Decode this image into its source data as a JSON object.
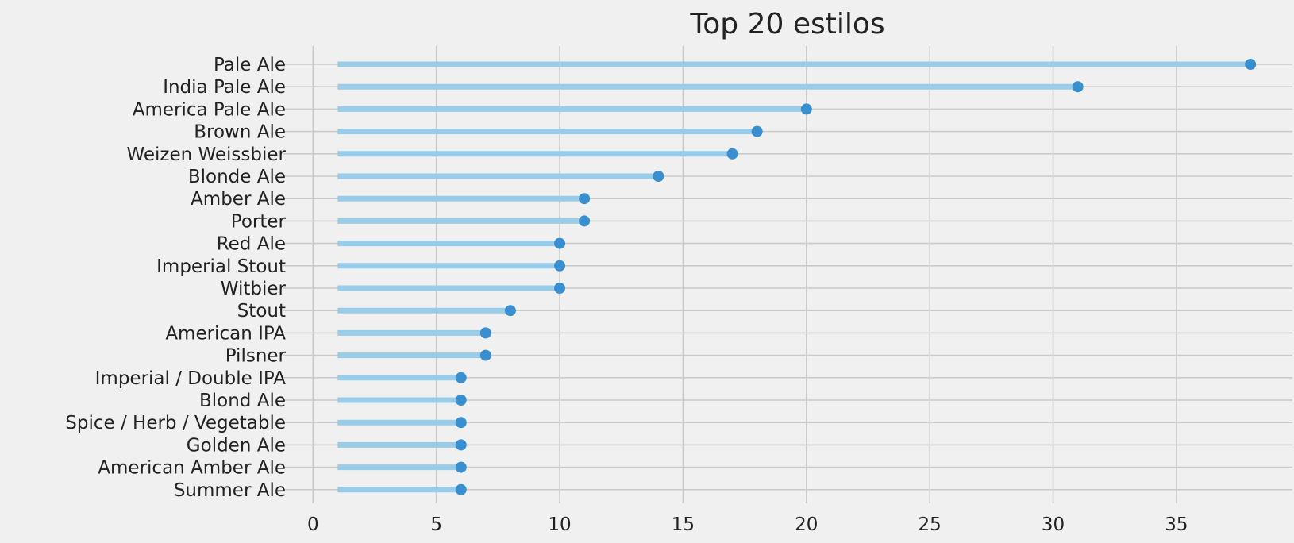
{
  "chart_data": {
    "type": "lollipop",
    "title": "Top 20 estilos",
    "xlabel": "",
    "ylabel": "",
    "xlim": [
      -1.2,
      39.7
    ],
    "xticks": [
      0,
      5,
      10,
      15,
      20,
      25,
      30,
      35
    ],
    "stem_start": 1,
    "grid": true,
    "colors": {
      "background": "#f0f0f0",
      "grid": "#cbcbcb",
      "stem": "#99cce9",
      "marker": "#3a8fd0"
    },
    "categories": [
      "Pale Ale",
      "India Pale Ale",
      "America Pale Ale",
      "Brown Ale",
      "Weizen Weissbier",
      "Blonde Ale",
      "Amber Ale",
      "Porter",
      "Red Ale",
      "Imperial Stout",
      "Witbier",
      "Stout",
      "American IPA",
      "Pilsner",
      "Imperial / Double IPA",
      "Blond Ale",
      "Spice / Herb / Vegetable",
      "Golden Ale",
      "American Amber Ale",
      "Summer Ale"
    ],
    "values": [
      38,
      31,
      20,
      18,
      17,
      14,
      11,
      11,
      10,
      10,
      10,
      8,
      7,
      7,
      6,
      6,
      6,
      6,
      6,
      6
    ]
  }
}
